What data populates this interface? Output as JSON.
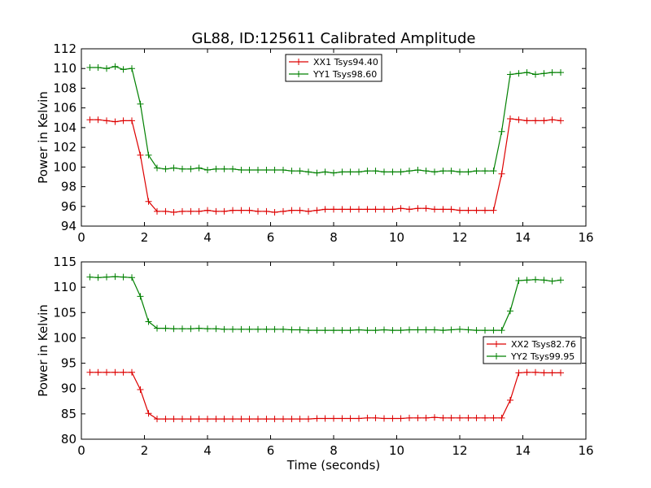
{
  "figure": {
    "title": "GL88, ID:125611 Calibrated Amplitude"
  },
  "chart_data": [
    {
      "type": "line",
      "title": "GL88, ID:125611 Calibrated Amplitude",
      "xlabel": "",
      "ylabel": "Power in Kelvin",
      "xlim": [
        0,
        16
      ],
      "ylim": [
        94,
        112
      ],
      "xticks": [
        0,
        2,
        4,
        6,
        8,
        10,
        12,
        14,
        16
      ],
      "yticks": [
        94,
        96,
        98,
        100,
        102,
        104,
        106,
        108,
        110,
        112
      ],
      "grid": false,
      "legend": "top-center",
      "x": [
        0.27,
        0.53,
        0.8,
        1.07,
        1.33,
        1.6,
        1.87,
        2.13,
        2.4,
        2.67,
        2.93,
        3.2,
        3.47,
        3.73,
        4.0,
        4.27,
        4.53,
        4.8,
        5.07,
        5.33,
        5.6,
        5.87,
        6.13,
        6.4,
        6.67,
        6.93,
        7.2,
        7.47,
        7.73,
        8.0,
        8.27,
        8.53,
        8.8,
        9.07,
        9.33,
        9.6,
        9.87,
        10.13,
        10.4,
        10.67,
        10.93,
        11.2,
        11.47,
        11.73,
        12.0,
        12.27,
        12.53,
        12.8,
        13.07,
        13.33,
        13.6,
        13.87,
        14.13,
        14.4,
        14.67,
        14.93,
        15.2
      ],
      "series": [
        {
          "name": "XX1 Tsys94.40",
          "color": "#dd0000",
          "values": [
            104.8,
            104.8,
            104.7,
            104.6,
            104.7,
            104.7,
            101.2,
            96.5,
            95.5,
            95.5,
            95.4,
            95.5,
            95.5,
            95.5,
            95.6,
            95.5,
            95.5,
            95.6,
            95.6,
            95.6,
            95.5,
            95.5,
            95.4,
            95.5,
            95.6,
            95.6,
            95.5,
            95.6,
            95.7,
            95.7,
            95.7,
            95.7,
            95.7,
            95.7,
            95.7,
            95.7,
            95.7,
            95.8,
            95.7,
            95.8,
            95.8,
            95.7,
            95.7,
            95.7,
            95.6,
            95.6,
            95.6,
            95.6,
            95.6,
            99.3,
            104.9,
            104.8,
            104.7,
            104.7,
            104.7,
            104.8,
            104.7
          ]
        },
        {
          "name": "YY1 Tsys98.60",
          "color": "#008000",
          "values": [
            110.1,
            110.1,
            110.0,
            110.2,
            109.9,
            110.0,
            106.4,
            101.2,
            99.9,
            99.8,
            99.9,
            99.8,
            99.8,
            99.9,
            99.7,
            99.8,
            99.8,
            99.8,
            99.7,
            99.7,
            99.7,
            99.7,
            99.7,
            99.7,
            99.6,
            99.6,
            99.5,
            99.4,
            99.5,
            99.4,
            99.5,
            99.5,
            99.5,
            99.6,
            99.6,
            99.5,
            99.5,
            99.5,
            99.6,
            99.7,
            99.6,
            99.5,
            99.6,
            99.6,
            99.5,
            99.5,
            99.6,
            99.6,
            99.6,
            103.6,
            109.4,
            109.5,
            109.6,
            109.4,
            109.5,
            109.6,
            109.6
          ]
        }
      ]
    },
    {
      "type": "line",
      "title": "",
      "xlabel": "Time (seconds)",
      "ylabel": "Power in Kelvin",
      "xlim": [
        0,
        16
      ],
      "ylim": [
        80,
        115
      ],
      "xticks": [
        0,
        2,
        4,
        6,
        8,
        10,
        12,
        14,
        16
      ],
      "yticks": [
        80,
        85,
        90,
        95,
        100,
        105,
        110,
        115
      ],
      "grid": false,
      "legend": "center-right",
      "x": [
        0.27,
        0.53,
        0.8,
        1.07,
        1.33,
        1.6,
        1.87,
        2.13,
        2.4,
        2.67,
        2.93,
        3.2,
        3.47,
        3.73,
        4.0,
        4.27,
        4.53,
        4.8,
        5.07,
        5.33,
        5.6,
        5.87,
        6.13,
        6.4,
        6.67,
        6.93,
        7.2,
        7.47,
        7.73,
        8.0,
        8.27,
        8.53,
        8.8,
        9.07,
        9.33,
        9.6,
        9.87,
        10.13,
        10.4,
        10.67,
        10.93,
        11.2,
        11.47,
        11.73,
        12.0,
        12.27,
        12.53,
        12.8,
        13.07,
        13.33,
        13.6,
        13.87,
        14.13,
        14.4,
        14.67,
        14.93,
        15.2
      ],
      "series": [
        {
          "name": "XX2 Tsys82.76",
          "color": "#dd0000",
          "values": [
            93.2,
            93.2,
            93.2,
            93.2,
            93.2,
            93.2,
            89.8,
            85.1,
            84.0,
            84.0,
            84.0,
            84.0,
            84.0,
            84.0,
            84.0,
            84.0,
            84.0,
            84.0,
            84.0,
            84.0,
            84.0,
            84.0,
            84.0,
            84.0,
            84.0,
            84.0,
            84.0,
            84.1,
            84.1,
            84.1,
            84.1,
            84.1,
            84.1,
            84.2,
            84.2,
            84.1,
            84.1,
            84.1,
            84.2,
            84.2,
            84.2,
            84.3,
            84.2,
            84.2,
            84.2,
            84.2,
            84.2,
            84.2,
            84.2,
            84.2,
            87.7,
            93.1,
            93.2,
            93.2,
            93.1,
            93.1,
            93.1
          ]
        },
        {
          "name": "YY2 Tsys99.95",
          "color": "#008000",
          "values": [
            112.0,
            111.9,
            112.0,
            112.1,
            112.0,
            111.9,
            108.2,
            103.2,
            101.9,
            101.9,
            101.8,
            101.8,
            101.8,
            101.9,
            101.8,
            101.8,
            101.7,
            101.7,
            101.7,
            101.7,
            101.7,
            101.7,
            101.7,
            101.7,
            101.6,
            101.6,
            101.5,
            101.5,
            101.5,
            101.5,
            101.5,
            101.5,
            101.6,
            101.5,
            101.5,
            101.6,
            101.5,
            101.5,
            101.6,
            101.6,
            101.6,
            101.6,
            101.5,
            101.6,
            101.7,
            101.6,
            101.5,
            101.5,
            101.5,
            101.5,
            105.3,
            111.3,
            111.4,
            111.5,
            111.4,
            111.2,
            111.4
          ]
        }
      ]
    }
  ]
}
